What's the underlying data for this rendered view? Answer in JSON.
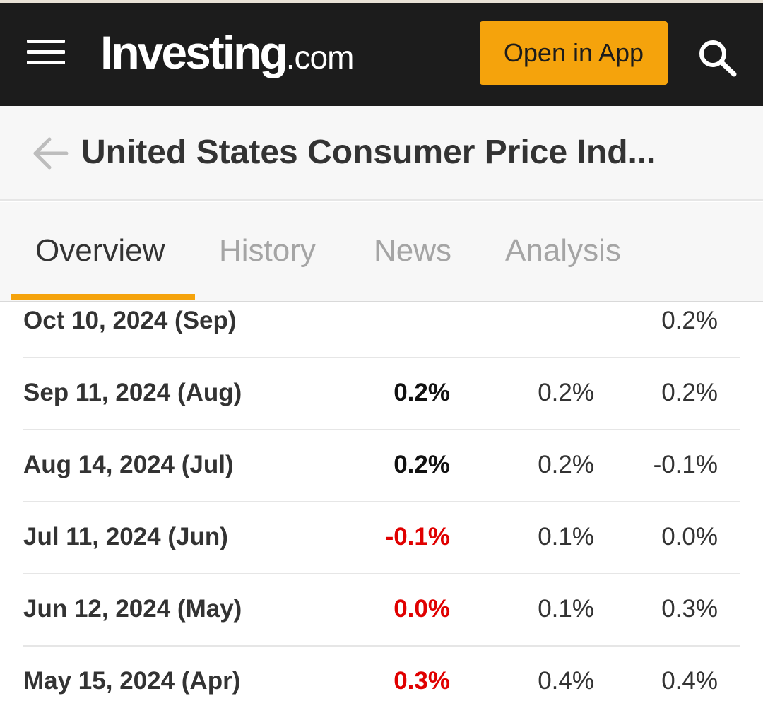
{
  "header": {
    "logo_main": "Investing",
    "logo_tld": ".com",
    "open_app_label": "Open in App"
  },
  "title_bar": {
    "title": "United States Consumer Price Ind..."
  },
  "tabs": [
    {
      "label": "Overview",
      "active": true
    },
    {
      "label": "History",
      "active": false
    },
    {
      "label": "News",
      "active": false
    },
    {
      "label": "Analysis",
      "active": false
    }
  ],
  "table": {
    "rows": [
      {
        "date": "Oct 10, 2024 (Sep)",
        "actual": "",
        "forecast": "",
        "previous": "0.2%"
      },
      {
        "date": "Sep 11, 2024 (Aug)",
        "actual": "0.2%",
        "actual_color": "#111111",
        "forecast": "0.2%",
        "previous": "0.2%"
      },
      {
        "date": "Aug 14, 2024 (Jul)",
        "actual": "0.2%",
        "actual_color": "#111111",
        "forecast": "0.2%",
        "previous": "-0.1%"
      },
      {
        "date": "Jul 11, 2024 (Jun)",
        "actual": "-0.1%",
        "actual_color": "#e00000",
        "forecast": "0.1%",
        "previous": "0.0%"
      },
      {
        "date": "Jun 12, 2024 (May)",
        "actual": "0.0%",
        "actual_color": "#e00000",
        "forecast": "0.1%",
        "previous": "0.3%"
      },
      {
        "date": "May 15, 2024 (Apr)",
        "actual": "0.3%",
        "actual_color": "#e00000",
        "forecast": "0.4%",
        "previous": "0.4%"
      }
    ]
  },
  "colors": {
    "header_bg": "#1c1c1c",
    "accent": "#f5a30c",
    "negative": "#e00000"
  },
  "icons": {
    "menu": "hamburger-menu-icon",
    "search": "search-icon",
    "back": "back-arrow-icon"
  }
}
